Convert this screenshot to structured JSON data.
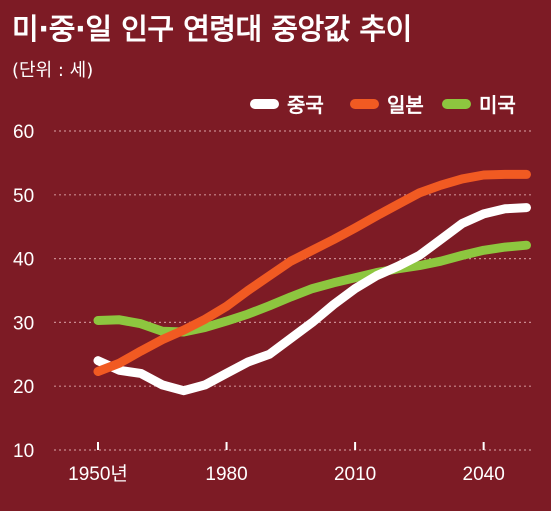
{
  "title": "미·중·일 인구 연령대 중앙값 추이",
  "unit": "(단위 : 세)",
  "colors": {
    "background": "#7d1b25",
    "china": "#ffffff",
    "japan": "#f15a22",
    "usa": "#8dc63f",
    "grid": "#c98a8f"
  },
  "chart_data": {
    "type": "line",
    "title": "미·중·일 인구 연령대 중앙값 추이",
    "ylabel": "(단위 : 세)",
    "ylim": [
      10,
      60
    ],
    "xlim": [
      1950,
      2050
    ],
    "yticks": [
      "10",
      "20",
      "30",
      "40",
      "50",
      "60"
    ],
    "xtick_values": [
      1950,
      1980,
      2010,
      2040
    ],
    "xtick_labels": [
      "1950년",
      "1980",
      "2010",
      "2040"
    ],
    "grid": true,
    "legend_position": "top-right",
    "series": [
      {
        "name": "중국",
        "color": "#ffffff",
        "x": [
          1950,
          1955,
          1960,
          1965,
          1970,
          1975,
          1980,
          1985,
          1990,
          1995,
          2000,
          2005,
          2010,
          2015,
          2020,
          2025,
          2030,
          2035,
          2040,
          2045,
          2050
        ],
        "values": [
          24,
          22.5,
          22,
          20.2,
          19.3,
          20.2,
          22,
          23.8,
          25,
          27.5,
          30,
          32.8,
          35.3,
          37.3,
          38.8,
          40.5,
          43,
          45.5,
          47,
          47.8,
          48
        ]
      },
      {
        "name": "일본",
        "color": "#f15a22",
        "x": [
          1950,
          1955,
          1960,
          1965,
          1970,
          1975,
          1980,
          1985,
          1990,
          1995,
          2000,
          2005,
          2010,
          2015,
          2020,
          2025,
          2030,
          2035,
          2040,
          2045,
          2050
        ],
        "values": [
          22.3,
          23.6,
          25.5,
          27.3,
          28.8,
          30.5,
          32.5,
          35,
          37.3,
          39.6,
          41.3,
          43,
          44.8,
          46.7,
          48.5,
          50.3,
          51.5,
          52.5,
          53.1,
          53.2,
          53.2
        ]
      },
      {
        "name": "미국",
        "color": "#8dc63f",
        "x": [
          1950,
          1955,
          1960,
          1965,
          1970,
          1975,
          1980,
          1985,
          1990,
          1995,
          2000,
          2005,
          2010,
          2015,
          2020,
          2025,
          2030,
          2035,
          2040,
          2045,
          2050
        ],
        "values": [
          30.3,
          30.4,
          29.8,
          28.6,
          28.5,
          29.2,
          30.2,
          31.3,
          32.6,
          34,
          35.3,
          36.2,
          37,
          37.8,
          38.4,
          38.9,
          39.6,
          40.5,
          41.3,
          41.8,
          42.1
        ]
      }
    ]
  }
}
